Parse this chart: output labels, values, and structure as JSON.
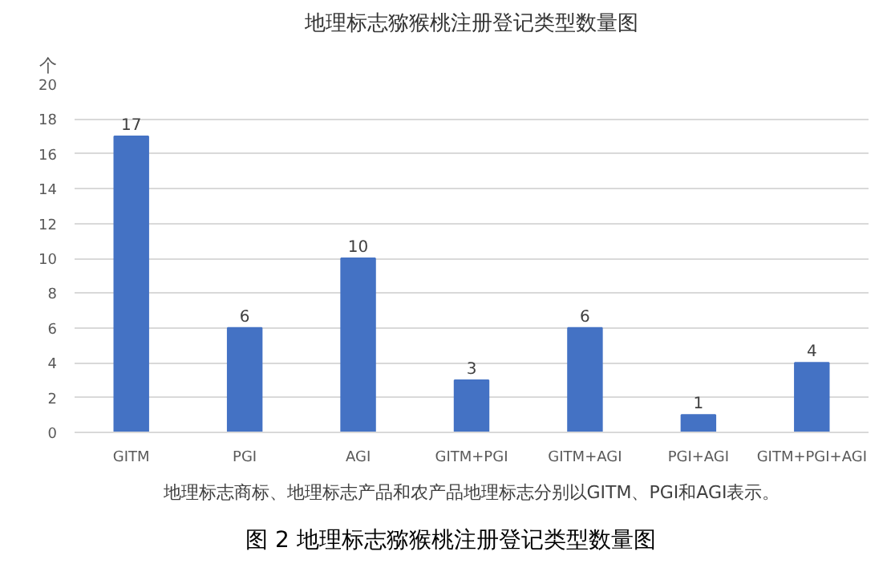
{
  "chart_data": {
    "type": "bar",
    "title": "地理标志猕猴桃注册登记类型数量图",
    "ylabel": "个",
    "categories": [
      "GITM",
      "PGI",
      "AGI",
      "GITM+PGI",
      "GITM+AGI",
      "PGI+AGI",
      "GITM+PGI+AGI"
    ],
    "values": [
      17,
      6,
      10,
      3,
      6,
      1,
      4
    ],
    "color": "#4472c4",
    "data_labels": true,
    "ylim": [
      0,
      20
    ],
    "yticks": [
      0,
      2,
      4,
      6,
      8,
      10,
      12,
      14,
      16,
      18,
      20
    ],
    "grid": "y",
    "annotations": [
      "地理标志商标、地理标志产品和农产品地理标志分别以GITM、PGI和AGI表示。",
      "图 2 地理标志猕猴桃注册登记类型数量图"
    ]
  }
}
